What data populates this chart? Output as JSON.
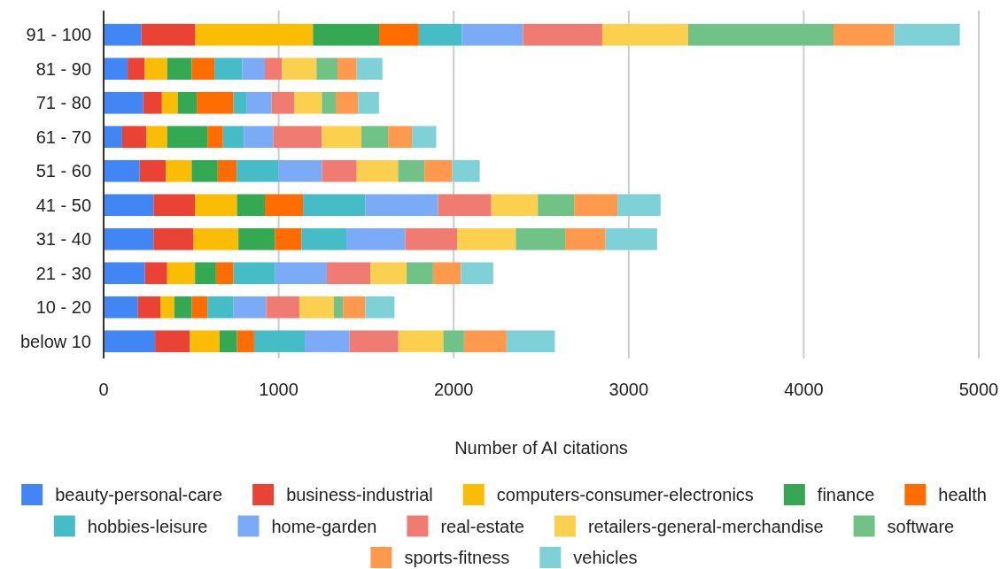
{
  "chart_data": {
    "type": "bar",
    "orientation": "horizontal",
    "stacked": true,
    "xlabel": "Number of AI citations",
    "categories": [
      "91 - 100",
      "81 - 90",
      "71 - 80",
      "61 - 70",
      "51 - 60",
      "41 - 50",
      "31 - 40",
      "21 - 30",
      "10 - 20",
      "below 10"
    ],
    "xlim": [
      0,
      5000
    ],
    "xticks": [
      0,
      1000,
      2000,
      3000,
      4000,
      5000
    ],
    "grid": "x",
    "legend": "bottom",
    "series": [
      {
        "name": "beauty-personal-care",
        "color": "#4285f4",
        "values": [
          216,
          137,
          226,
          106,
          206,
          285,
          285,
          236,
          196,
          294
        ]
      },
      {
        "name": "business-industrial",
        "color": "#ea4335",
        "values": [
          308,
          98,
          107,
          139,
          149,
          237,
          229,
          127,
          128,
          199
        ]
      },
      {
        "name": "computers-consumer-electronics",
        "color": "#fbbc04",
        "values": [
          672,
          128,
          91,
          118,
          148,
          240,
          256,
          159,
          80,
          169
        ]
      },
      {
        "name": "finance",
        "color": "#34a853",
        "values": [
          378,
          140,
          108,
          230,
          149,
          159,
          208,
          120,
          99,
          100
        ]
      },
      {
        "name": "health",
        "color": "#ff6d01",
        "values": [
          227,
          130,
          210,
          89,
          108,
          218,
          152,
          100,
          90,
          98
        ]
      },
      {
        "name": "hobbies-leisure",
        "color": "#46bdc6",
        "values": [
          245,
          158,
          77,
          119,
          240,
          356,
          257,
          238,
          149,
          289
        ]
      },
      {
        "name": "home-garden",
        "color": "#7baaf7",
        "values": [
          350,
          130,
          140,
          169,
          247,
          416,
          336,
          295,
          187,
          256
        ]
      },
      {
        "name": "real-estate",
        "color": "#f07b72",
        "values": [
          453,
          98,
          129,
          277,
          199,
          304,
          297,
          249,
          189,
          279
        ]
      },
      {
        "name": "retailers-general-merchandise",
        "color": "#fcd04f",
        "values": [
          491,
          197,
          159,
          226,
          236,
          266,
          335,
          207,
          198,
          257
        ]
      },
      {
        "name": "software",
        "color": "#71c287",
        "values": [
          830,
          120,
          79,
          152,
          151,
          207,
          282,
          151,
          51,
          118
        ]
      },
      {
        "name": "sports-fitness",
        "color": "#ff994d",
        "values": [
          347,
          110,
          128,
          137,
          159,
          248,
          230,
          159,
          128,
          243
        ]
      },
      {
        "name": "vehicles",
        "color": "#7ed1d7",
        "values": [
          375,
          147,
          119,
          138,
          157,
          246,
          295,
          185,
          167,
          276
        ]
      }
    ]
  }
}
